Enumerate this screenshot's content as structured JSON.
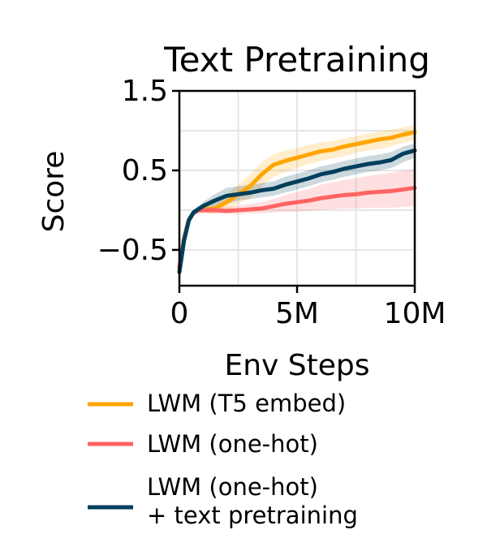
{
  "chart_data": {
    "type": "line",
    "title": "Text Pretraining",
    "xlabel": "Env Steps",
    "ylabel": "Score",
    "xlim": [
      0,
      10000000
    ],
    "ylim": [
      -0.95,
      1.5
    ],
    "x_ticks": [
      {
        "value": 0,
        "label": "0"
      },
      {
        "value": 5000000,
        "label": "5M"
      },
      {
        "value": 10000000,
        "label": "10M"
      }
    ],
    "y_ticks": [
      {
        "value": 1.5,
        "label": "1.5"
      },
      {
        "value": 0.5,
        "label": "0.5"
      },
      {
        "value": -0.5,
        "label": "−0.5"
      }
    ],
    "grid": true,
    "legend_position": "below",
    "x": [
      0,
      200000,
      400000,
      600000,
      800000,
      1000000,
      1500000,
      2000000,
      2500000,
      3000000,
      3500000,
      4000000,
      4500000,
      5000000,
      5500000,
      6000000,
      6500000,
      7000000,
      7500000,
      8000000,
      8500000,
      9000000,
      9500000,
      10000000
    ],
    "series": [
      {
        "name": "LWM (T5 embed)",
        "color": "#FFA500",
        "values": [
          -0.72,
          -0.35,
          -0.12,
          -0.03,
          0.0,
          0.01,
          0.02,
          0.1,
          0.2,
          0.3,
          0.45,
          0.57,
          0.62,
          0.66,
          0.7,
          0.74,
          0.76,
          0.8,
          0.83,
          0.86,
          0.89,
          0.91,
          0.95,
          0.98
        ],
        "lower": [
          -0.75,
          -0.4,
          -0.16,
          -0.07,
          -0.04,
          -0.03,
          -0.05,
          0.0,
          0.08,
          0.15,
          0.3,
          0.42,
          0.48,
          0.53,
          0.58,
          0.62,
          0.65,
          0.68,
          0.72,
          0.75,
          0.77,
          0.8,
          0.85,
          0.88
        ],
        "upper": [
          -0.68,
          -0.3,
          -0.08,
          0.01,
          0.04,
          0.05,
          0.1,
          0.2,
          0.32,
          0.45,
          0.6,
          0.7,
          0.75,
          0.78,
          0.82,
          0.85,
          0.87,
          0.9,
          0.93,
          0.96,
          0.99,
          1.01,
          1.04,
          1.07
        ]
      },
      {
        "name": "LWM (one-hot)",
        "color": "#FF6363",
        "values": [
          -0.72,
          -0.35,
          -0.12,
          -0.03,
          0.0,
          0.0,
          0.0,
          -0.01,
          0.0,
          0.01,
          0.02,
          0.05,
          0.08,
          0.1,
          0.12,
          0.15,
          0.17,
          0.19,
          0.2,
          0.22,
          0.23,
          0.24,
          0.26,
          0.28
        ],
        "lower": [
          -0.75,
          -0.4,
          -0.16,
          -0.07,
          -0.04,
          -0.04,
          -0.04,
          -0.05,
          -0.05,
          -0.04,
          -0.04,
          -0.03,
          -0.02,
          -0.02,
          -0.01,
          0.0,
          0.01,
          0.02,
          0.02,
          0.03,
          0.03,
          0.03,
          0.04,
          0.05
        ],
        "upper": [
          -0.68,
          -0.3,
          -0.08,
          0.01,
          0.04,
          0.04,
          0.05,
          0.04,
          0.06,
          0.08,
          0.1,
          0.14,
          0.19,
          0.23,
          0.27,
          0.32,
          0.35,
          0.38,
          0.4,
          0.43,
          0.45,
          0.47,
          0.5,
          0.52
        ]
      },
      {
        "name": "LWM (one-hot)\n+ text pretraining",
        "color": "#003F5C",
        "values": [
          -0.78,
          -0.38,
          -0.13,
          -0.03,
          0.01,
          0.05,
          0.12,
          0.18,
          0.2,
          0.22,
          0.25,
          0.27,
          0.32,
          0.36,
          0.4,
          0.45,
          0.48,
          0.52,
          0.55,
          0.58,
          0.6,
          0.63,
          0.71,
          0.75
        ],
        "lower": [
          -0.8,
          -0.42,
          -0.17,
          -0.07,
          -0.03,
          0.0,
          0.04,
          0.08,
          0.12,
          0.14,
          0.16,
          0.18,
          0.22,
          0.26,
          0.3,
          0.35,
          0.38,
          0.42,
          0.45,
          0.48,
          0.5,
          0.53,
          0.6,
          0.66
        ],
        "upper": [
          -0.74,
          -0.34,
          -0.09,
          0.01,
          0.05,
          0.1,
          0.2,
          0.28,
          0.3,
          0.32,
          0.34,
          0.36,
          0.42,
          0.46,
          0.5,
          0.55,
          0.58,
          0.62,
          0.65,
          0.68,
          0.7,
          0.73,
          0.8,
          0.84
        ]
      }
    ]
  }
}
